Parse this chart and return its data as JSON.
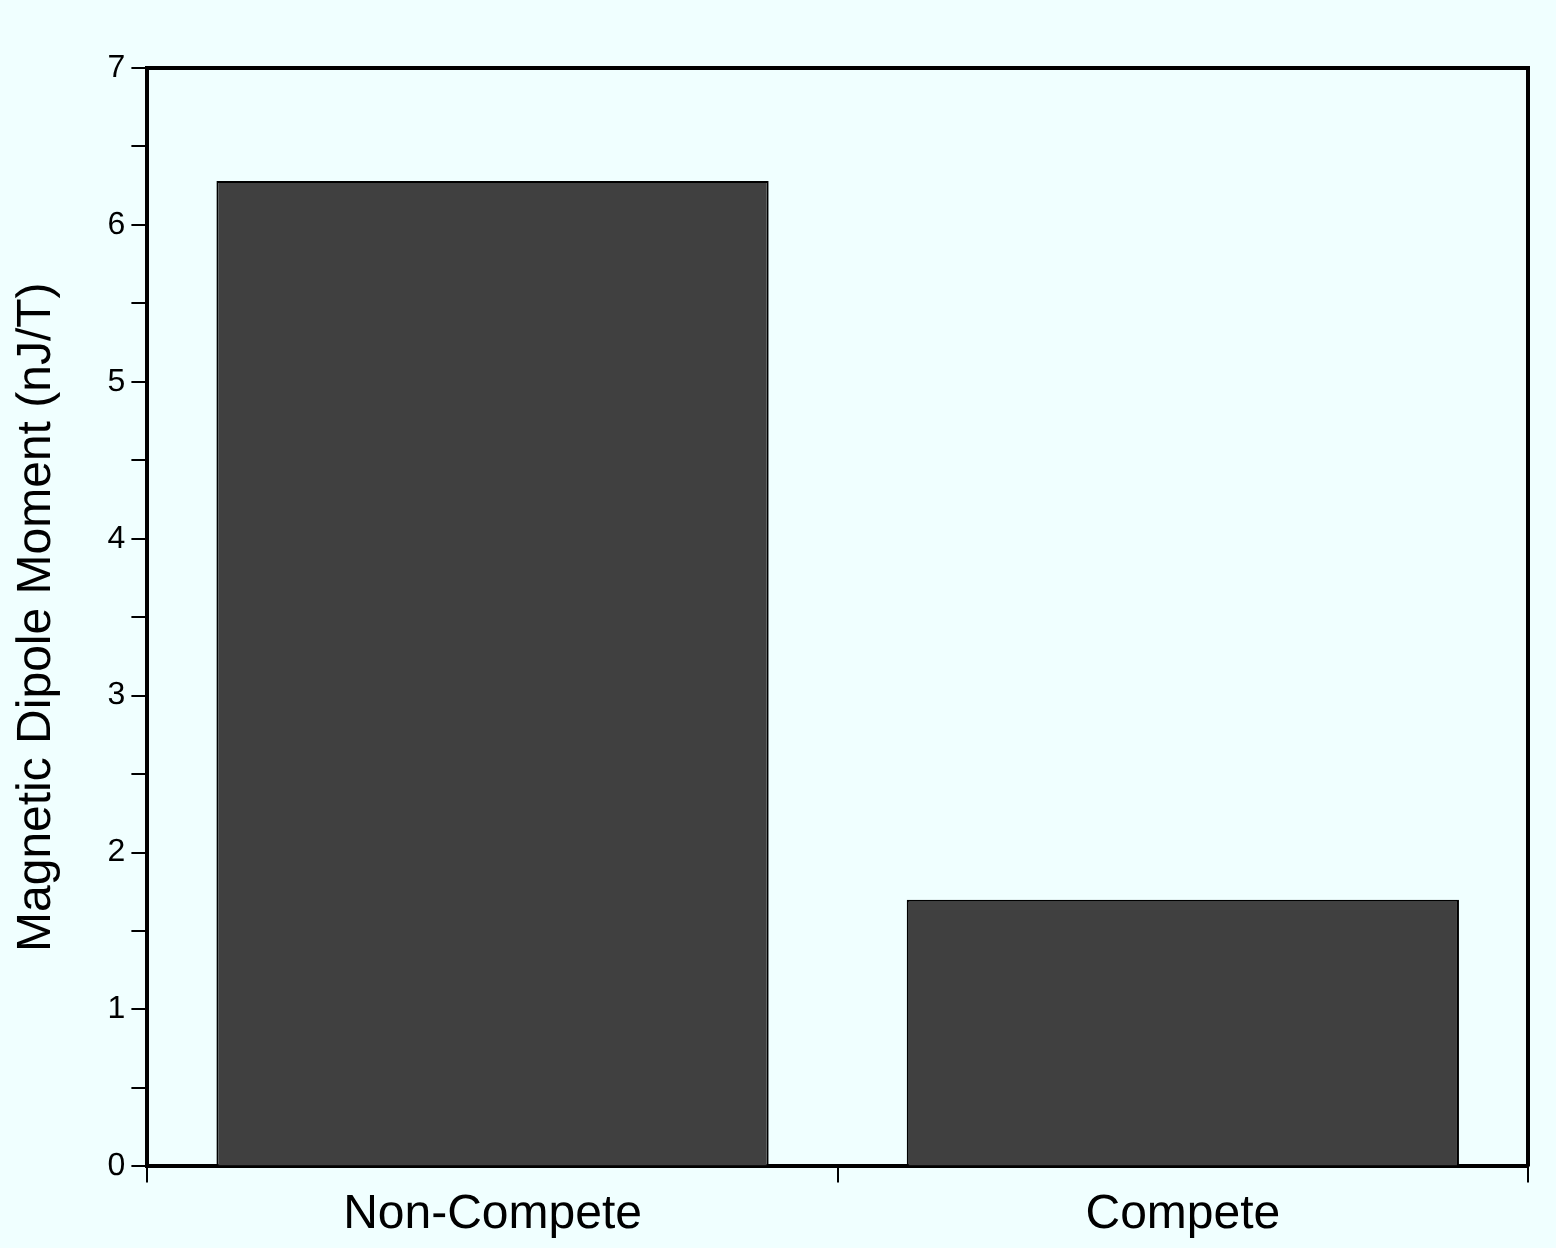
{
  "chart_data": {
    "type": "bar",
    "ylabel": "Magnetic Dipole Moment (nJ/T)",
    "categories": [
      "Non-Compete",
      "Compete"
    ],
    "values": [
      6.28,
      1.7
    ],
    "color": "#404040",
    "ylim": [
      0,
      7
    ],
    "yticks": [
      0,
      {
        "value": 0.5,
        "label": null
      },
      1,
      {
        "value": 1.5,
        "label": null
      },
      2,
      {
        "value": 2.5,
        "label": null
      },
      3,
      {
        "value": 3.5,
        "label": null
      },
      4,
      {
        "value": 4.5,
        "label": null
      },
      5,
      {
        "value": 5.5,
        "label": null
      },
      6,
      {
        "value": 6.5,
        "label": null
      },
      7
    ],
    "grid": false,
    "legend": false
  }
}
